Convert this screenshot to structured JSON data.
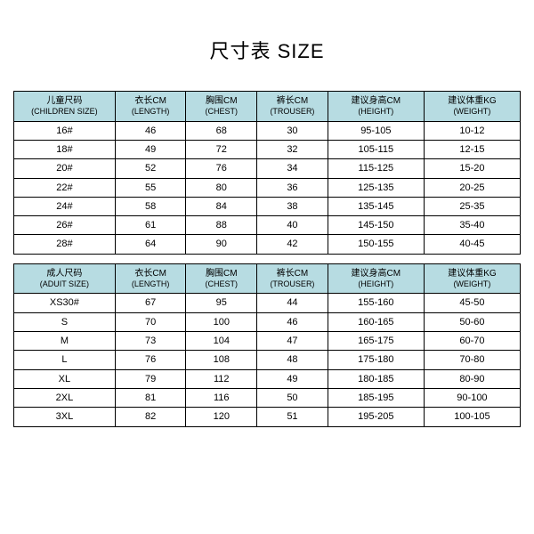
{
  "title": "尺寸表 SIZE",
  "header_bg": "#b7dce2",
  "children_table": {
    "columns": [
      {
        "cn": "儿童尺码",
        "en": "(CHILDREN SIZE)"
      },
      {
        "cn": "衣长CM",
        "en": "(LENGTH)"
      },
      {
        "cn": "胸围CM",
        "en": "(CHEST)"
      },
      {
        "cn": "裤长CM",
        "en": "(TROUSER)"
      },
      {
        "cn": "建议身高CM",
        "en": "(HEIGHT)"
      },
      {
        "cn": "建议体重KG",
        "en": "(WEIGHT)"
      }
    ],
    "rows": [
      [
        "16#",
        "46",
        "68",
        "30",
        "95-105",
        "10-12"
      ],
      [
        "18#",
        "49",
        "72",
        "32",
        "105-115",
        "12-15"
      ],
      [
        "20#",
        "52",
        "76",
        "34",
        "115-125",
        "15-20"
      ],
      [
        "22#",
        "55",
        "80",
        "36",
        "125-135",
        "20-25"
      ],
      [
        "24#",
        "58",
        "84",
        "38",
        "135-145",
        "25-35"
      ],
      [
        "26#",
        "61",
        "88",
        "40",
        "145-150",
        "35-40"
      ],
      [
        "28#",
        "64",
        "90",
        "42",
        "150-155",
        "40-45"
      ]
    ]
  },
  "adult_table": {
    "columns": [
      {
        "cn": "成人尺码",
        "en": "(ADUIT SIZE)"
      },
      {
        "cn": "衣长CM",
        "en": "(LENGTH)"
      },
      {
        "cn": "胸围CM",
        "en": "(CHEST)"
      },
      {
        "cn": "裤长CM",
        "en": "(TROUSER)"
      },
      {
        "cn": "建议身高CM",
        "en": "(HEIGHT)"
      },
      {
        "cn": "建议体重KG",
        "en": "(WEIGHT)"
      }
    ],
    "rows": [
      [
        "XS30#",
        "67",
        "95",
        "44",
        "155-160",
        "45-50"
      ],
      [
        "S",
        "70",
        "100",
        "46",
        "160-165",
        "50-60"
      ],
      [
        "M",
        "73",
        "104",
        "47",
        "165-175",
        "60-70"
      ],
      [
        "L",
        "76",
        "108",
        "48",
        "175-180",
        "70-80"
      ],
      [
        "XL",
        "79",
        "112",
        "49",
        "180-185",
        "80-90"
      ],
      [
        "2XL",
        "81",
        "116",
        "50",
        "185-195",
        "90-100"
      ],
      [
        "3XL",
        "82",
        "120",
        "51",
        "195-205",
        "100-105"
      ]
    ]
  },
  "col_widths": [
    "20%",
    "14%",
    "14%",
    "14%",
    "19%",
    "19%"
  ]
}
